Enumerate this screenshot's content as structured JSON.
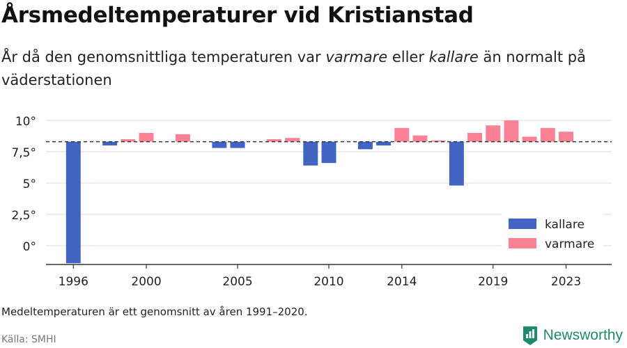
{
  "header": {
    "title": "Årsmedeltemperaturer vid Kristianstad",
    "subtitle_parts": [
      "År då den genomsnittliga temperaturen var ",
      "varmare",
      " eller ",
      "kallare",
      " än normalt på väderstationen"
    ]
  },
  "footer": {
    "note": "Medeltemperaturen är ett genomsnitt av åren 1991–2020.",
    "source": "Källa: SMHI",
    "brand": "Newsworthy"
  },
  "colors": {
    "kallare": "#4163c1",
    "varmare": "#fb8295",
    "baseline": "#333333",
    "grid": "#dddddd",
    "brand": "#1f8a70"
  },
  "icons": {
    "brand_logo": "bar-chart-logo-icon"
  },
  "chart_data": {
    "type": "bar",
    "title": "Årsmedeltemperaturer vid Kristianstad",
    "baseline": 8.3,
    "ylim": [
      -1.5,
      10.5
    ],
    "yticks": [
      0,
      2.5,
      5,
      7.5,
      10
    ],
    "ytick_labels": [
      "0°",
      "2,5°",
      "5°",
      "7,5°",
      "10°"
    ],
    "xlim": [
      1994.5,
      2025.5
    ],
    "xticks": [
      1996,
      2000,
      2005,
      2010,
      2014,
      2019,
      2023
    ],
    "xtick_labels": [
      "1996",
      "2000",
      "2005",
      "2010",
      "2014",
      "2019",
      "2023"
    ],
    "grid": true,
    "legend": {
      "position": "bottom-right",
      "entries": [
        {
          "key": "kallare",
          "label": "kallare"
        },
        {
          "key": "varmare",
          "label": "varmare"
        }
      ]
    },
    "series": [
      {
        "name": "kallare",
        "points": [
          {
            "x": 1996,
            "y": -1.4
          },
          {
            "x": 1998,
            "y": 8.0
          },
          {
            "x": 2004,
            "y": 7.8
          },
          {
            "x": 2005,
            "y": 7.8
          },
          {
            "x": 2009,
            "y": 6.4
          },
          {
            "x": 2010,
            "y": 6.6
          },
          {
            "x": 2012,
            "y": 7.7
          },
          {
            "x": 2013,
            "y": 8.0
          },
          {
            "x": 2017,
            "y": 4.8
          }
        ]
      },
      {
        "name": "varmare",
        "points": [
          {
            "x": 1999,
            "y": 8.5
          },
          {
            "x": 2000,
            "y": 9.0
          },
          {
            "x": 2002,
            "y": 8.9
          },
          {
            "x": 2007,
            "y": 8.5
          },
          {
            "x": 2008,
            "y": 8.6
          },
          {
            "x": 2014,
            "y": 9.4
          },
          {
            "x": 2015,
            "y": 8.8
          },
          {
            "x": 2016,
            "y": 8.4
          },
          {
            "x": 2018,
            "y": 9.0
          },
          {
            "x": 2019,
            "y": 9.6
          },
          {
            "x": 2020,
            "y": 10.0
          },
          {
            "x": 2021,
            "y": 8.7
          },
          {
            "x": 2022,
            "y": 9.4
          },
          {
            "x": 2023,
            "y": 9.1
          }
        ]
      }
    ]
  }
}
